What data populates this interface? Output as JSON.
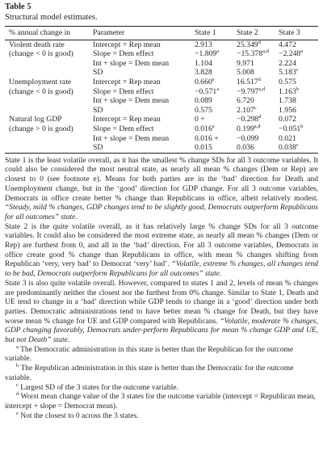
{
  "table_label": "Table 5",
  "table_title": "Structural model estimates.",
  "headers": [
    "% annual change in",
    "Parameter",
    "State 1",
    "State 2",
    "State 3"
  ],
  "groups": [
    {
      "outcome_line1": "Violent death rate",
      "outcome_line2": "(change < 0 is good)",
      "rows": [
        {
          "param": "Intercept = Rep mean",
          "s1": "2.913",
          "s1_sup": "",
          "s2": "25.349",
          "s2_sup": "d",
          "s3": "4.472",
          "s3_sup": ""
        },
        {
          "param": "Slope = Dem effect",
          "s1": "−1.809",
          "s1_sup": "a",
          "s2": "−15.378",
          "s2_sup": "a,d",
          "s3": "−2.248",
          "s3_sup": "a"
        },
        {
          "param": "Int + slope = Dem mean",
          "s1": "1.104",
          "s1_sup": "",
          "s2": "9.971",
          "s2_sup": "",
          "s3": "2.224",
          "s3_sup": ""
        },
        {
          "param": "SD",
          "s1": "3.828",
          "s1_sup": "",
          "s2": "5.008",
          "s2_sup": "",
          "s3": "5.183",
          "s3_sup": "c"
        }
      ]
    },
    {
      "outcome_line1": "Unemployment rate",
      "outcome_line2": "(change < 0 is good)",
      "rows": [
        {
          "param": "Intercept = Rep mean",
          "s1": "0.660",
          "s1_sup": "e",
          "s2": "16.517",
          "s2_sup": "d",
          "s3": "0.575",
          "s3_sup": ""
        },
        {
          "param": "Slope = Dem effect",
          "s1": "−0.571",
          "s1_sup": "a",
          "s2": "−9.797",
          "s2_sup": "a,d",
          "s3": "1.163",
          "s3_sup": "b"
        },
        {
          "param": "Int + slope = Dem mean",
          "s1": "0.089",
          "s1_sup": "",
          "s2": "6.720",
          "s2_sup": "",
          "s3": "1.738",
          "s3_sup": ""
        },
        {
          "param": "SD",
          "s1": "0.575",
          "s1_sup": "",
          "s2": "2.107",
          "s2_sup": "c",
          "s3": "1.956",
          "s3_sup": ""
        }
      ]
    },
    {
      "outcome_line1": "Natural log GDP",
      "outcome_line2": "(change > 0 is good)",
      "rows": [
        {
          "param": "Intercept = Rep mean",
          "s1": "0 +",
          "s1_sup": "",
          "s2": "−0.298",
          "s2_sup": "d",
          "s3": "0.072",
          "s3_sup": ""
        },
        {
          "param": "Slope = Dem effect",
          "s1": "0.016",
          "s1_sup": "a",
          "s2": "0.199",
          "s2_sup": "a,d",
          "s3": "−0.051",
          "s3_sup": "b"
        },
        {
          "param": "Int + slope = Dem mean",
          "s1": "0.016 +",
          "s1_sup": "",
          "s2": "−0.099",
          "s2_sup": "",
          "s3": "0.021",
          "s3_sup": ""
        },
        {
          "param": "SD",
          "s1": "0.015",
          "s1_sup": "",
          "s2": "0.036",
          "s2_sup": "",
          "s3": "0.038",
          "s3_sup": "c"
        }
      ]
    }
  ],
  "paragraphs": [
    {
      "text": "State 1 is the least volatile overall, as it has the smallest % change SDs for all 3 outcome variables. It could also be considered the most neutral state, as nearly all mean % changes (Dem or Rep) are closest to 0 (see footnote e). Means for both parties are in the ‘bad’ direction for Death and Unemployment change, but in the ‘good’ direction for GDP change. For all 3 outcome variables, Democrats in office create better % change than Republicans in office, albeit relatively modest. ",
      "italic": "“Steady, mild % changes, GDP changes tend to be slightly good, Democrats outperform Republicans for all outcomes” state."
    },
    {
      "text": "State 2 is the quite volatile overall, as it has relatively large % change SDs for all 3 outcome variables. It could also be considered the most extreme state, as nearly all mean % changes (Dem or Rep) are furthest from 0, and all in the ‘bad’ direction. For all 3 outcome variables, Democrats in office create good % change than Republicans in office, with mean % changes shifting from Republican ‘very, very bad’ to Democrat ‘very’ bad’. ",
      "italic": "“Volatile, extreme % changes, all changes tend to be bad, Democrats outperform Republicans for all outcomes” state."
    },
    {
      "text": "State 3 is also quite volatile overall. However, compared to states 1 and 2, levels of mean % changes are predominantly neither the closest nor the furthest from 0% change. Similar to State 1, Death and UE tend to change in a ‘bad’ direction while GDP tends to change in a ‘good’ direction under both parties. Democratic administrations tend to have better mean % change for Death, but they have worse mean % change for UE and GDP compared with Republicans. ",
      "italic": "“Volatile, moderate % changes, GDP changing favorably, Democrats under-perform Republicans for mean % change GDP and UE, but not Death” state."
    }
  ],
  "footnotes": [
    {
      "mark": "a",
      "text": "The Democratic administration in this state is better than the Republican for the outcome variable."
    },
    {
      "mark": "b",
      "text": "The Republican administration in this state is better than the Democratic for the outcome variable."
    },
    {
      "mark": "c",
      "text": "Largest SD of the 3 states for the outcome variable."
    },
    {
      "mark": "d",
      "text": "Worst mean change value of the 3 states for the outcome variable (intercept = Republican mean, intercept + slope = Democrat mean)."
    },
    {
      "mark": "e",
      "text": "Not the closest to 0 across the 3 states."
    }
  ]
}
